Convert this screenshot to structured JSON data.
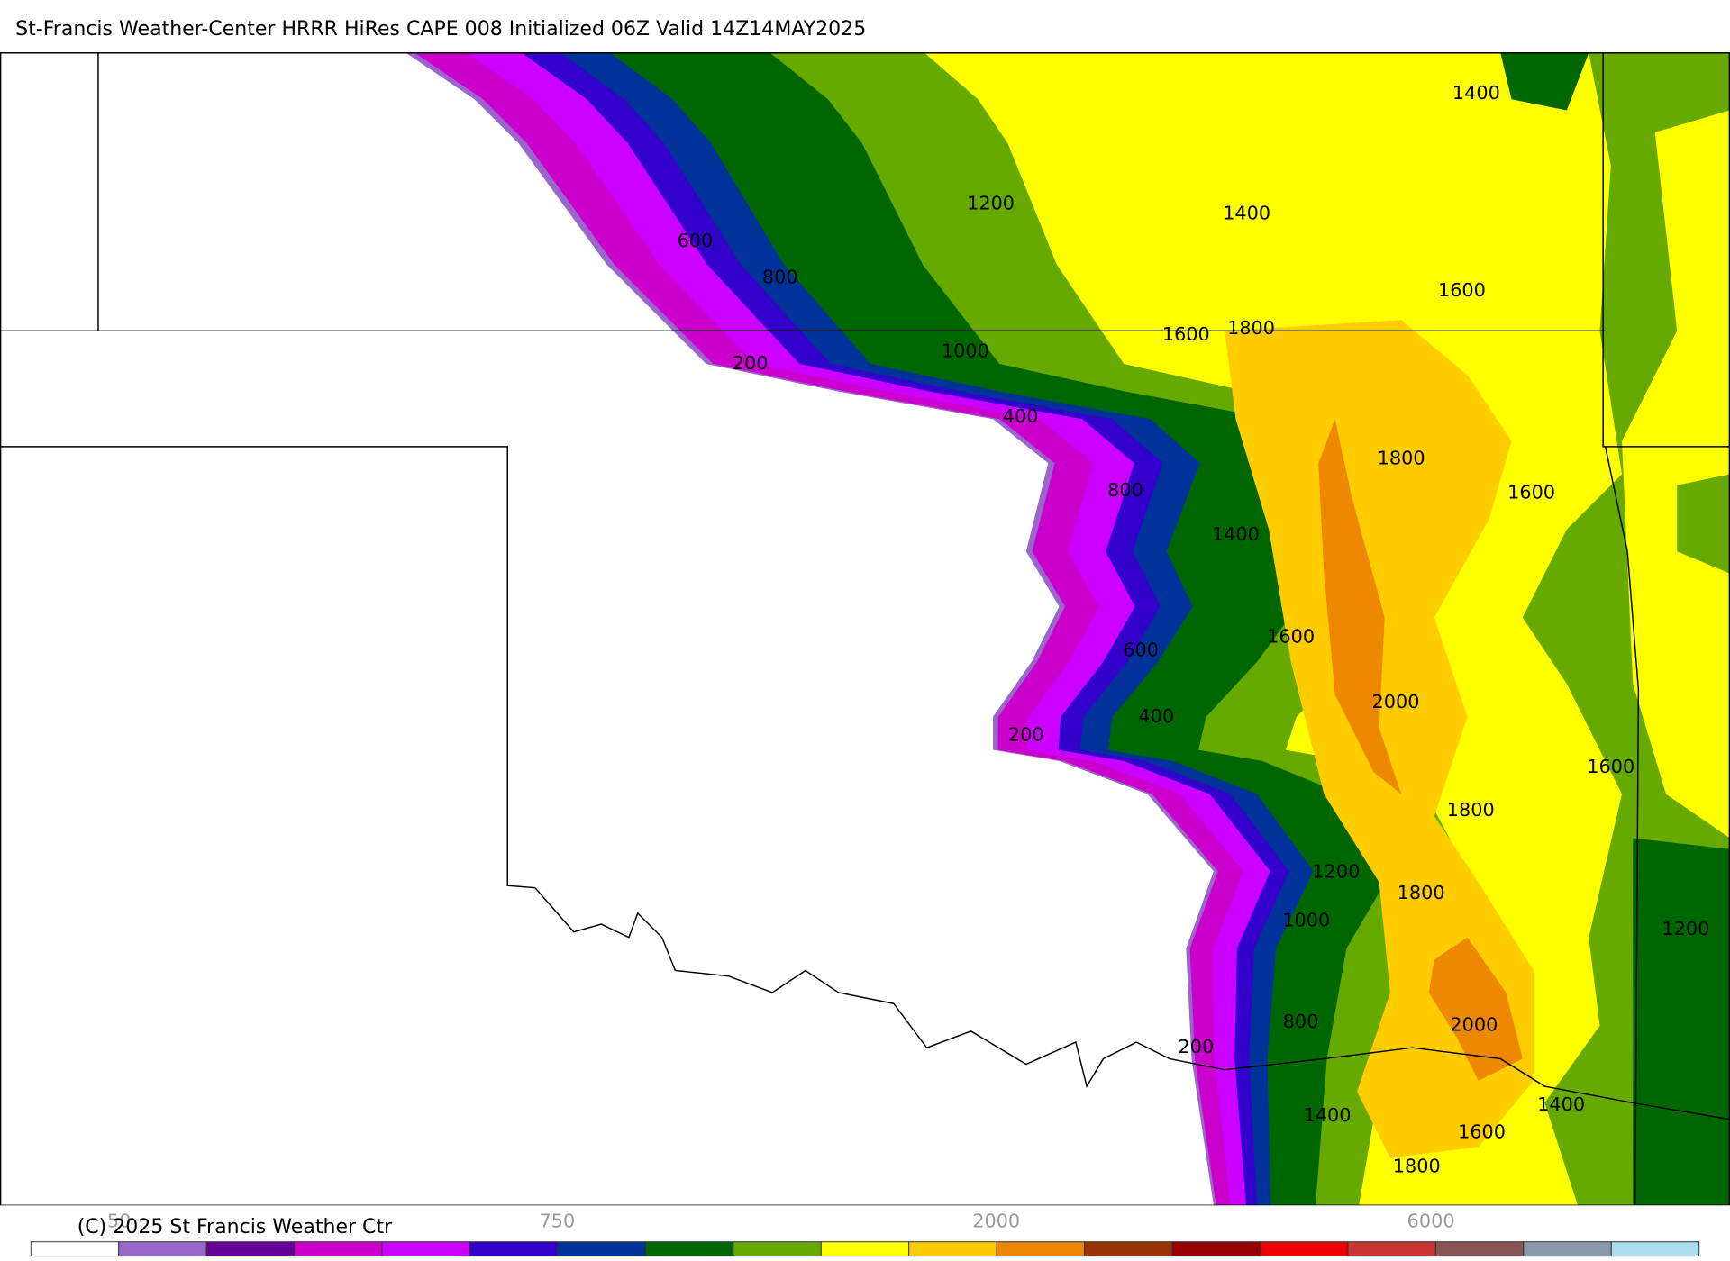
{
  "title": "St-Francis Weather-Center HRRR HiRes CAPE  008 Initialized  06Z Valid 14Z14MAY2025",
  "contour_labels": [
    "1400",
    "1200",
    "1400",
    "600",
    "800",
    "1600",
    "1600",
    "1800",
    "200",
    "1000",
    "400",
    "800",
    "1800",
    "1600",
    "1400",
    "1600",
    "600",
    "2000",
    "400",
    "200",
    "1600",
    "1800",
    "1200",
    "1800",
    "1000",
    "1200",
    "2000",
    "800",
    "200",
    "1400",
    "1600",
    "1400",
    "1800"
  ],
  "colorbar": {
    "colors": [
      "#ffffff",
      "#9966cc",
      "#660099",
      "#cc00cc",
      "#cc00ff",
      "#3300cc",
      "#003399",
      "#006600",
      "#66aa00",
      "#ffff00",
      "#ffcc00",
      "#ee8800",
      "#993300",
      "#990000",
      "#ee0000",
      "#cc3333",
      "#885555",
      "#8899aa",
      "#aaddee"
    ],
    "labels": [
      "50",
      "750",
      "2000",
      "6000"
    ]
  },
  "copyright": "(C) 2025 St Francis Weather Ctr"
}
